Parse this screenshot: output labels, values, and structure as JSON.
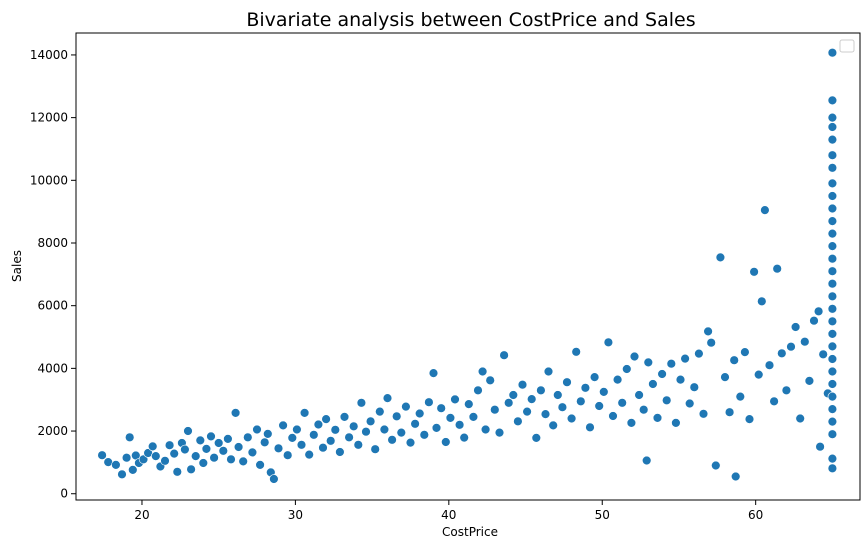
{
  "chart_data": {
    "type": "scatter",
    "title": "Bivariate analysis between CostPrice and Sales",
    "xlabel": "CostPrice",
    "ylabel": "Sales",
    "xlim": [
      15.7,
      66.8
    ],
    "ylim": [
      -200,
      14700
    ],
    "xticks": [
      20,
      30,
      40,
      50,
      60
    ],
    "yticks": [
      0,
      2000,
      4000,
      6000,
      8000,
      10000,
      12000,
      14000
    ],
    "legend": "top-right (empty)",
    "grid": false,
    "marker_color": "#1f77b4",
    "series": [
      {
        "values_description_omitted": true,
        "points": [
          [
            17.4,
            1230
          ],
          [
            17.8,
            1010
          ],
          [
            18.3,
            920
          ],
          [
            18.7,
            620
          ],
          [
            19.0,
            1150
          ],
          [
            19.2,
            1800
          ],
          [
            19.4,
            760
          ],
          [
            19.6,
            1220
          ],
          [
            19.8,
            980
          ],
          [
            20.1,
            1100
          ],
          [
            20.4,
            1300
          ],
          [
            20.7,
            1510
          ],
          [
            20.9,
            1200
          ],
          [
            21.2,
            870
          ],
          [
            21.5,
            1050
          ],
          [
            21.8,
            1550
          ],
          [
            22.1,
            1280
          ],
          [
            22.3,
            700
          ],
          [
            22.6,
            1620
          ],
          [
            22.8,
            1410
          ],
          [
            23.0,
            2000
          ],
          [
            23.2,
            780
          ],
          [
            23.5,
            1200
          ],
          [
            23.8,
            1700
          ],
          [
            24.0,
            980
          ],
          [
            24.2,
            1430
          ],
          [
            24.5,
            1830
          ],
          [
            24.7,
            1150
          ],
          [
            25.0,
            1620
          ],
          [
            25.3,
            1370
          ],
          [
            25.6,
            1750
          ],
          [
            25.8,
            1100
          ],
          [
            26.1,
            2580
          ],
          [
            26.3,
            1490
          ],
          [
            26.6,
            1030
          ],
          [
            26.9,
            1800
          ],
          [
            27.2,
            1320
          ],
          [
            27.5,
            2050
          ],
          [
            27.7,
            920
          ],
          [
            28.0,
            1640
          ],
          [
            28.2,
            1910
          ],
          [
            28.4,
            680
          ],
          [
            28.6,
            470
          ],
          [
            28.9,
            1450
          ],
          [
            29.2,
            2180
          ],
          [
            29.5,
            1230
          ],
          [
            29.8,
            1780
          ],
          [
            30.1,
            2050
          ],
          [
            30.4,
            1560
          ],
          [
            30.6,
            2580
          ],
          [
            30.9,
            1250
          ],
          [
            31.2,
            1880
          ],
          [
            31.5,
            2210
          ],
          [
            31.8,
            1470
          ],
          [
            32.0,
            2380
          ],
          [
            32.3,
            1690
          ],
          [
            32.6,
            2040
          ],
          [
            32.9,
            1330
          ],
          [
            33.2,
            2450
          ],
          [
            33.5,
            1800
          ],
          [
            33.8,
            2150
          ],
          [
            34.1,
            1560
          ],
          [
            34.3,
            2900
          ],
          [
            34.6,
            1980
          ],
          [
            34.9,
            2310
          ],
          [
            35.2,
            1420
          ],
          [
            35.5,
            2620
          ],
          [
            35.8,
            2050
          ],
          [
            36.0,
            3050
          ],
          [
            36.3,
            1720
          ],
          [
            36.6,
            2470
          ],
          [
            36.9,
            1950
          ],
          [
            37.2,
            2780
          ],
          [
            37.5,
            1630
          ],
          [
            37.8,
            2230
          ],
          [
            38.1,
            2560
          ],
          [
            38.4,
            1880
          ],
          [
            38.7,
            2920
          ],
          [
            39.0,
            3850
          ],
          [
            39.2,
            2100
          ],
          [
            39.5,
            2730
          ],
          [
            39.8,
            1650
          ],
          [
            40.1,
            2420
          ],
          [
            40.4,
            3010
          ],
          [
            40.7,
            2200
          ],
          [
            41.0,
            1790
          ],
          [
            41.3,
            2860
          ],
          [
            41.6,
            2450
          ],
          [
            41.9,
            3300
          ],
          [
            42.2,
            3900
          ],
          [
            42.4,
            2050
          ],
          [
            42.7,
            3620
          ],
          [
            43.0,
            2680
          ],
          [
            43.3,
            1950
          ],
          [
            43.6,
            4420
          ],
          [
            43.9,
            2900
          ],
          [
            44.2,
            3150
          ],
          [
            44.5,
            2310
          ],
          [
            44.8,
            3480
          ],
          [
            45.1,
            2620
          ],
          [
            45.4,
            3020
          ],
          [
            45.7,
            1780
          ],
          [
            46.0,
            3300
          ],
          [
            46.3,
            2540
          ],
          [
            46.5,
            3900
          ],
          [
            46.8,
            2180
          ],
          [
            47.1,
            3150
          ],
          [
            47.4,
            2760
          ],
          [
            47.7,
            3560
          ],
          [
            48.0,
            2400
          ],
          [
            48.3,
            4530
          ],
          [
            48.6,
            2950
          ],
          [
            48.9,
            3380
          ],
          [
            49.2,
            2120
          ],
          [
            49.5,
            3720
          ],
          [
            49.8,
            2800
          ],
          [
            50.1,
            3250
          ],
          [
            50.4,
            4830
          ],
          [
            50.7,
            2480
          ],
          [
            51.0,
            3640
          ],
          [
            51.3,
            2900
          ],
          [
            51.6,
            3980
          ],
          [
            51.9,
            2260
          ],
          [
            52.1,
            4380
          ],
          [
            52.4,
            3150
          ],
          [
            52.7,
            2680
          ],
          [
            53.0,
            4190
          ],
          [
            52.9,
            1060
          ],
          [
            53.3,
            3500
          ],
          [
            53.6,
            2420
          ],
          [
            53.9,
            3820
          ],
          [
            54.2,
            2980
          ],
          [
            54.5,
            4150
          ],
          [
            54.8,
            2260
          ],
          [
            55.1,
            3640
          ],
          [
            55.4,
            4310
          ],
          [
            55.7,
            2880
          ],
          [
            56.0,
            3400
          ],
          [
            56.3,
            4470
          ],
          [
            56.6,
            2550
          ],
          [
            56.9,
            5180
          ],
          [
            57.1,
            4820
          ],
          [
            57.4,
            900
          ],
          [
            57.7,
            7540
          ],
          [
            58.0,
            3720
          ],
          [
            58.3,
            2600
          ],
          [
            58.6,
            4260
          ],
          [
            58.7,
            550
          ],
          [
            59.0,
            3100
          ],
          [
            59.3,
            4520
          ],
          [
            59.6,
            2380
          ],
          [
            59.9,
            7080
          ],
          [
            60.2,
            3800
          ],
          [
            60.4,
            6140
          ],
          [
            60.6,
            9050
          ],
          [
            60.9,
            4100
          ],
          [
            61.2,
            2950
          ],
          [
            61.4,
            7180
          ],
          [
            61.7,
            4480
          ],
          [
            62.0,
            3300
          ],
          [
            62.3,
            4690
          ],
          [
            62.6,
            5320
          ],
          [
            62.9,
            2400
          ],
          [
            63.2,
            4850
          ],
          [
            63.5,
            3600
          ],
          [
            63.8,
            5520
          ],
          [
            64.1,
            5820
          ],
          [
            64.2,
            1500
          ],
          [
            64.4,
            4450
          ],
          [
            64.7,
            3200
          ],
          [
            65.0,
            14070
          ],
          [
            65.0,
            12550
          ],
          [
            65.0,
            12000
          ],
          [
            65.0,
            11700
          ],
          [
            65.0,
            11300
          ],
          [
            65.0,
            10800
          ],
          [
            65.0,
            10400
          ],
          [
            65.0,
            9900
          ],
          [
            65.0,
            9500
          ],
          [
            65.0,
            9100
          ],
          [
            65.0,
            8700
          ],
          [
            65.0,
            8300
          ],
          [
            65.0,
            7900
          ],
          [
            65.0,
            7500
          ],
          [
            65.0,
            7100
          ],
          [
            65.0,
            6700
          ],
          [
            65.0,
            6300
          ],
          [
            65.0,
            5900
          ],
          [
            65.0,
            5500
          ],
          [
            65.0,
            5100
          ],
          [
            65.0,
            4700
          ],
          [
            65.0,
            4300
          ],
          [
            65.0,
            3900
          ],
          [
            65.0,
            3500
          ],
          [
            65.0,
            3100
          ],
          [
            65.0,
            2700
          ],
          [
            65.0,
            2300
          ],
          [
            65.0,
            1900
          ],
          [
            65.0,
            1120
          ],
          [
            65.0,
            810
          ]
        ]
      }
    ]
  }
}
